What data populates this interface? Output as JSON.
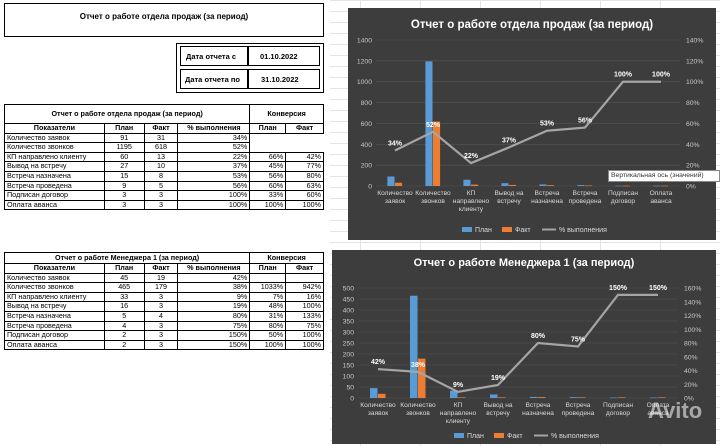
{
  "sheet": {
    "main_title": "Отчет о работе отдела продаж (за период)",
    "date_from_label": "Дата отчета с",
    "date_from": "01.10.2022",
    "date_to_label": "Дата отчета по",
    "date_to": "31.10.2022"
  },
  "table1": {
    "title": "Отчет о работе отдела продаж (за период)",
    "conv_title": "Конверсия",
    "headers": [
      "Показатели",
      "План",
      "Факт",
      "% выполнения",
      "План",
      "Факт"
    ],
    "rows": [
      [
        "Количество заявок",
        "91",
        "31",
        "34%",
        "",
        ""
      ],
      [
        "Количество звонков",
        "1195",
        "618",
        "52%",
        "",
        ""
      ],
      [
        "КП направлено клиенту",
        "60",
        "13",
        "22%",
        "66%",
        "42%"
      ],
      [
        "Вывод на встречу",
        "27",
        "10",
        "37%",
        "45%",
        "77%"
      ],
      [
        "Встреча назначена",
        "15",
        "8",
        "53%",
        "56%",
        "80%"
      ],
      [
        "Встреча проведена",
        "9",
        "5",
        "56%",
        "60%",
        "63%"
      ],
      [
        "Подписан договор",
        "3",
        "3",
        "100%",
        "33%",
        "60%"
      ],
      [
        "Оплата аванса",
        "3",
        "3",
        "100%",
        "100%",
        "100%"
      ]
    ]
  },
  "table2": {
    "title": "Отчет о работе Менеджера 1 (за период)",
    "conv_title": "Конверсия",
    "headers": [
      "Показатели",
      "План",
      "Факт",
      "% выполнения",
      "План",
      "Факт"
    ],
    "rows": [
      [
        "Количество заявок",
        "45",
        "19",
        "42%",
        "",
        ""
      ],
      [
        "Количество звонков",
        "465",
        "179",
        "38%",
        "1033%",
        "942%"
      ],
      [
        "КП направлено клиенту",
        "33",
        "3",
        "9%",
        "7%",
        "16%"
      ],
      [
        "Вывод на встречу",
        "16",
        "3",
        "19%",
        "48%",
        "100%"
      ],
      [
        "Встреча назначена",
        "5",
        "4",
        "80%",
        "31%",
        "133%"
      ],
      [
        "Встреча проведена",
        "4",
        "3",
        "75%",
        "80%",
        "75%"
      ],
      [
        "Подписан договор",
        "2",
        "3",
        "150%",
        "50%",
        "100%"
      ],
      [
        "Оплата аванса",
        "2",
        "3",
        "150%",
        "100%",
        "100%"
      ]
    ]
  },
  "charts": {
    "tooltip": "Вертикальная ось (значений)",
    "watermark": "Avito"
  },
  "chart_data": [
    {
      "type": "bar",
      "title": "Отчет о работе отдела продаж (за период)",
      "categories": [
        [
          "Количество",
          "заявок"
        ],
        [
          "Количество",
          "звонков"
        ],
        [
          "КП",
          "направлено",
          "клиенту"
        ],
        [
          "Вывод на",
          "встречу"
        ],
        [
          "Встреча",
          "назначена"
        ],
        [
          "Встреча",
          "проведена"
        ],
        [
          "Подписан",
          "договор"
        ],
        [
          "Оплата",
          "аванса"
        ]
      ],
      "series": [
        {
          "name": "План",
          "values": [
            91,
            1195,
            60,
            27,
            15,
            9,
            3,
            3
          ],
          "color": "#5b9bd5"
        },
        {
          "name": "Факт",
          "values": [
            31,
            618,
            13,
            10,
            8,
            5,
            3,
            3
          ],
          "color": "#ed7d31"
        }
      ],
      "line": {
        "name": "% выполнения",
        "values": [
          34,
          52,
          22,
          37,
          53,
          56,
          100,
          100
        ],
        "labels": [
          "34%",
          "52%",
          "22%",
          "37%",
          "53%",
          "56%",
          "100%",
          "100%"
        ],
        "color": "#a5a5a5"
      },
      "ylim": [
        0,
        1400
      ],
      "yticks": [
        "0",
        "200",
        "400",
        "600",
        "800",
        "1000",
        "1200",
        "1400"
      ],
      "y2lim": [
        0,
        140
      ],
      "y2ticks": [
        "0%",
        "20%",
        "40%",
        "60%",
        "80%",
        "100%",
        "120%",
        "140%"
      ],
      "legend": [
        "План",
        "Факт",
        "% выполнения"
      ]
    },
    {
      "type": "bar",
      "title": "Отчет о работе Менеджера 1 (за период)",
      "categories": [
        [
          "Количество",
          "заявок"
        ],
        [
          "Количество",
          "звонков"
        ],
        [
          "КП",
          "направлено",
          "клиенту"
        ],
        [
          "Вывод на",
          "встречу"
        ],
        [
          "Встреча",
          "назначена"
        ],
        [
          "Встреча",
          "проведена"
        ],
        [
          "Подписан",
          "договор"
        ],
        [
          "Оплата",
          "аванса"
        ]
      ],
      "series": [
        {
          "name": "План",
          "values": [
            45,
            465,
            33,
            16,
            5,
            4,
            2,
            2
          ],
          "color": "#5b9bd5"
        },
        {
          "name": "Факт",
          "values": [
            19,
            179,
            3,
            3,
            4,
            3,
            3,
            3
          ],
          "color": "#ed7d31"
        }
      ],
      "line": {
        "name": "% выполнения",
        "values": [
          42,
          38,
          9,
          19,
          80,
          75,
          150,
          150
        ],
        "labels": [
          "42%",
          "38%",
          "9%",
          "19%",
          "80%",
          "75%",
          "150%",
          "150%"
        ],
        "color": "#a5a5a5"
      },
      "ylim": [
        0,
        500
      ],
      "yticks": [
        "0",
        "50",
        "100",
        "150",
        "200",
        "250",
        "300",
        "350",
        "400",
        "450",
        "500"
      ],
      "y2lim": [
        0,
        160
      ],
      "y2ticks": [
        "0%",
        "20%",
        "40%",
        "60%",
        "80%",
        "100%",
        "120%",
        "140%",
        "160%"
      ],
      "legend": [
        "План",
        "Факт",
        "% выполнения"
      ]
    }
  ]
}
